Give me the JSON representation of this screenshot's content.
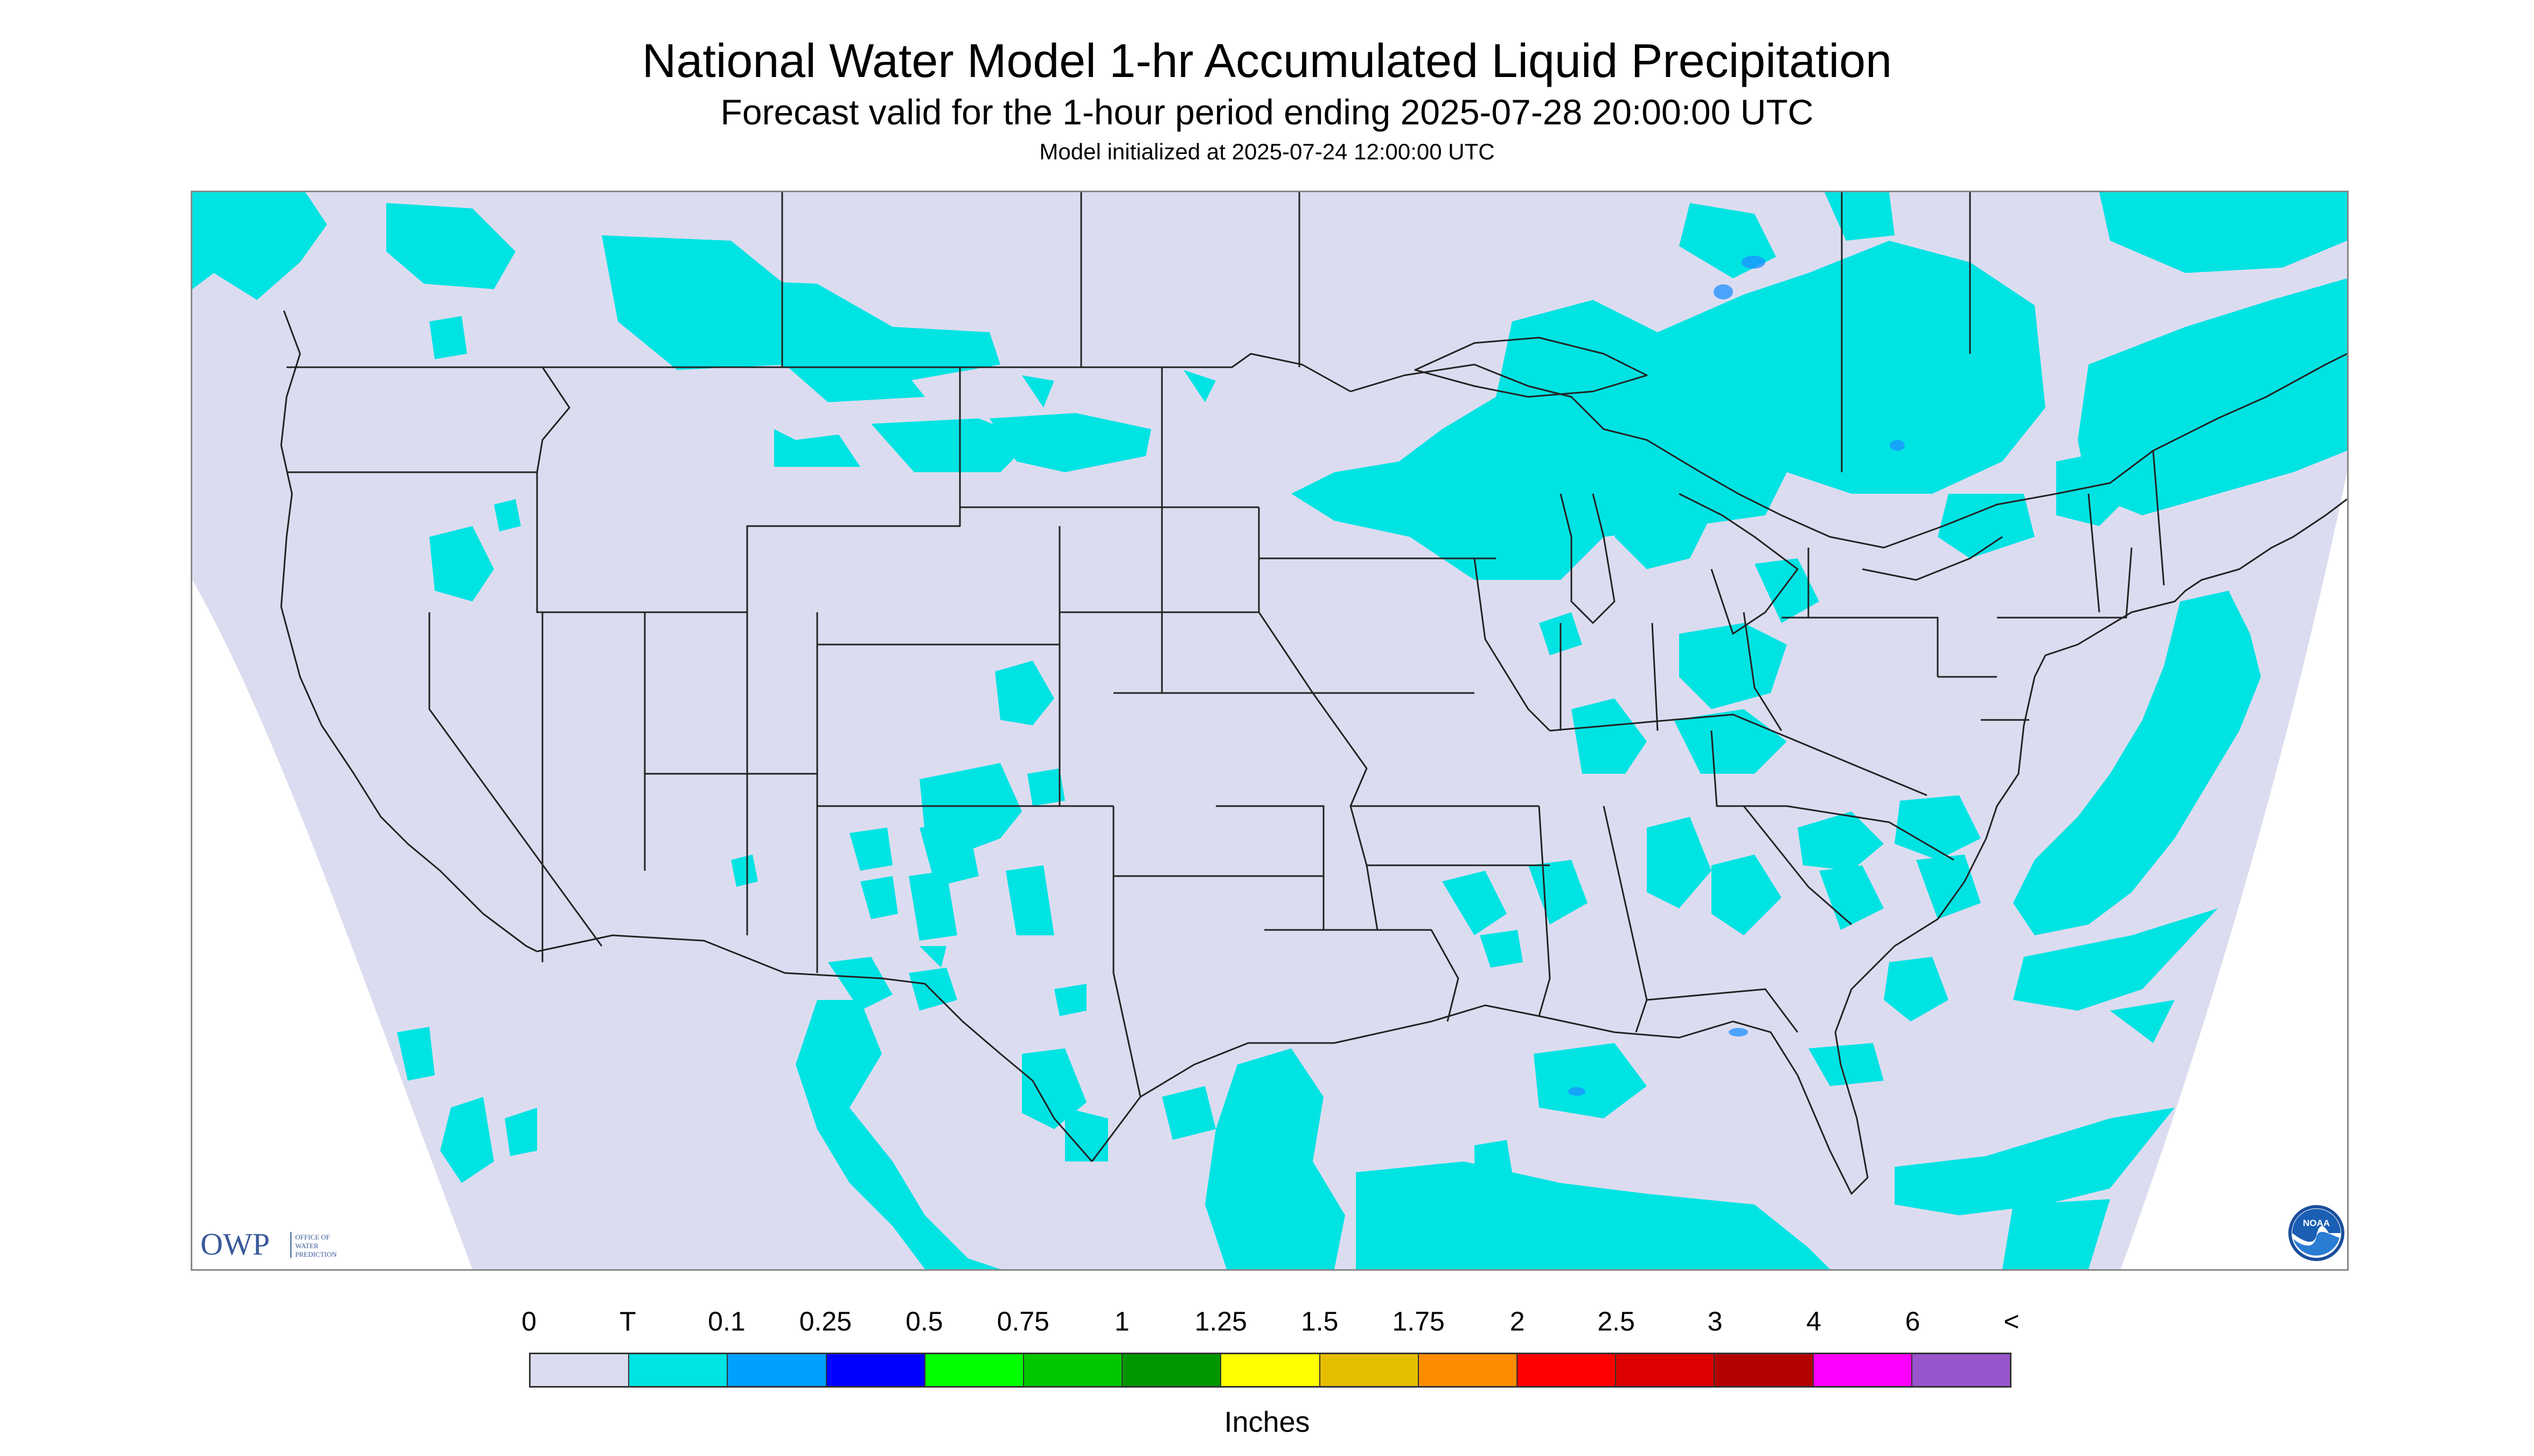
{
  "header": {
    "title": "National Water Model 1-hr Accumulated Liquid Precipitation",
    "subtitle": "Forecast valid for the 1-hour period ending 2025-07-28 20:00:00 UTC",
    "init_line": "Model initialized at 2025-07-24 12:00:00 UTC"
  },
  "map": {
    "background_color": "#dcdcf0",
    "outside_domain_color": "#ffffff",
    "boundary_color": "#222222",
    "precip_color": "#00e3e3",
    "precip_heavy_color": "#1e90ff"
  },
  "logos": {
    "owp": {
      "mark": "OWP",
      "text_lines": [
        "OFFICE OF",
        "WATER",
        "PREDICTION"
      ]
    },
    "noaa": {
      "icon": "noaa-emblem-icon",
      "text": "NOAA"
    }
  },
  "legend": {
    "tick_labels": [
      "0",
      "T",
      "0.1",
      "0.25",
      "0.5",
      "0.75",
      "1",
      "1.25",
      "1.5",
      "1.75",
      "2",
      "2.5",
      "3",
      "4",
      "6",
      "<"
    ],
    "colors": [
      "#dcdcf0",
      "#00e3e3",
      "#00a0ff",
      "#0000ff",
      "#00ff00",
      "#00c800",
      "#009600",
      "#ffff00",
      "#e6be00",
      "#ff8c00",
      "#ff0000",
      "#dc0000",
      "#b40000",
      "#ff00ff",
      "#9955cc"
    ],
    "units": "Inches"
  }
}
